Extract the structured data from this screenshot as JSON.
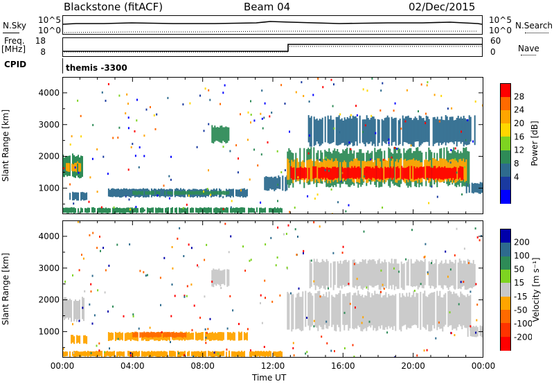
{
  "header": {
    "station": "Blackstone (fitACF)",
    "beam": "Beam 04",
    "date": "02/Dec/2015"
  },
  "noise_panel": {
    "left_label": "N.Sky",
    "right_label": "N.Search",
    "left_ticks": [
      "10^5",
      "10^0"
    ],
    "right_ticks": [
      "10^5",
      "10^0"
    ]
  },
  "freq_panel": {
    "left_label_1": "Freq.",
    "left_label_2": "[MHz]",
    "left_ticks": [
      "18",
      "8"
    ],
    "right_ticks": [
      "60",
      "0"
    ],
    "right_label": "Nave"
  },
  "cpid_panel": {
    "label": "CPID",
    "value": "themis -3300"
  },
  "chart_data": [
    {
      "type": "heatmap",
      "name": "power",
      "ylabel": "Slant Range [km]",
      "y_ticks": [
        "4000",
        "3000",
        "2000",
        "1000"
      ],
      "y_tick_values": [
        4000,
        3000,
        2000,
        1000
      ],
      "ylim": [
        180,
        4500
      ],
      "xlim_hours": [
        0,
        24
      ],
      "colorbar": {
        "label": "Power [dB]",
        "ticks": [
          "28",
          "24",
          "20",
          "16",
          "12",
          "8",
          "4"
        ],
        "colors": [
          "#ff0000",
          "#ff6a00",
          "#ffa500",
          "#ffd700",
          "#7ed321",
          "#2e8b57",
          "#2e6b8e",
          "#1a3aa0",
          "#0000ff"
        ]
      },
      "bands": [
        {
          "t0": 0.0,
          "t1": 1.2,
          "r0": 1300,
          "r1": 2100,
          "c": "#2e8b57"
        },
        {
          "t0": 0.2,
          "t1": 1.0,
          "r0": 1500,
          "r1": 1800,
          "c": "#ffa500"
        },
        {
          "t0": 0.4,
          "t1": 1.4,
          "r0": 600,
          "r1": 900,
          "c": "#2e6b8e"
        },
        {
          "t0": 2.6,
          "t1": 10.5,
          "r0": 700,
          "r1": 1000,
          "c": "#2e6b8e"
        },
        {
          "t0": 4.0,
          "t1": 9.5,
          "r0": 780,
          "r1": 920,
          "c": "#2e8b57"
        },
        {
          "t0": 8.5,
          "t1": 9.5,
          "r0": 2400,
          "r1": 3000,
          "c": "#2e8b57"
        },
        {
          "t0": 11.5,
          "t1": 12.8,
          "r0": 900,
          "r1": 1400,
          "c": "#2e6b8e"
        },
        {
          "t0": 12.8,
          "t1": 23.3,
          "r0": 1000,
          "r1": 2300,
          "c": "#2e8b57"
        },
        {
          "t0": 12.8,
          "t1": 23.0,
          "r0": 1150,
          "r1": 1950,
          "c": "#ffa500"
        },
        {
          "t0": 13.0,
          "t1": 22.8,
          "r0": 1250,
          "r1": 1700,
          "c": "#ff0000"
        },
        {
          "t0": 14.0,
          "t1": 23.5,
          "r0": 2300,
          "r1": 3300,
          "c": "#2e6b8e"
        },
        {
          "t0": 23.0,
          "t1": 24.0,
          "r0": 800,
          "r1": 1200,
          "c": "#2e6b8e"
        },
        {
          "t0": 0.0,
          "t1": 12.5,
          "r0": 200,
          "r1": 400,
          "c": "#2e8b57"
        }
      ]
    },
    {
      "type": "heatmap",
      "name": "velocity",
      "ylabel": "Slant Range [km]",
      "y_ticks": [
        "4000",
        "3000",
        "2000",
        "1000"
      ],
      "y_tick_values": [
        4000,
        3000,
        2000,
        1000
      ],
      "ylim": [
        180,
        4500
      ],
      "xlim_hours": [
        0,
        24
      ],
      "colorbar": {
        "label": "Velocity [m s⁻¹]",
        "ticks": [
          "200",
          "100",
          "50",
          "15",
          "-15",
          "-50",
          "-100",
          "-200"
        ],
        "colors": [
          "#0000aa",
          "#2e6b8e",
          "#2e8b57",
          "#7ed321",
          "#c8c8c8",
          "#ffa500",
          "#ff6a00",
          "#ff3300",
          "#ff0000"
        ]
      },
      "bands": [
        {
          "t0": 0.0,
          "t1": 1.2,
          "r0": 1300,
          "r1": 2100,
          "c": "#c8c8c8"
        },
        {
          "t0": 0.4,
          "t1": 1.4,
          "r0": 600,
          "r1": 900,
          "c": "#ffa500"
        },
        {
          "t0": 2.6,
          "t1": 10.5,
          "r0": 700,
          "r1": 1000,
          "c": "#ffa500"
        },
        {
          "t0": 4.0,
          "t1": 7.0,
          "r0": 800,
          "r1": 1000,
          "c": "#ff6a00"
        },
        {
          "t0": 8.5,
          "t1": 9.5,
          "r0": 2400,
          "r1": 3000,
          "c": "#c8c8c8"
        },
        {
          "t0": 12.8,
          "t1": 23.3,
          "r0": 1000,
          "r1": 2300,
          "c": "#c8c8c8"
        },
        {
          "t0": 14.0,
          "t1": 23.5,
          "r0": 2300,
          "r1": 3300,
          "c": "#c8c8c8"
        },
        {
          "t0": 23.0,
          "t1": 24.0,
          "r0": 800,
          "r1": 1200,
          "c": "#c8c8c8"
        },
        {
          "t0": 0.0,
          "t1": 12.5,
          "r0": 200,
          "r1": 400,
          "c": "#ffa500"
        }
      ]
    }
  ],
  "x_axis": {
    "label": "Time UT",
    "ticks": [
      "00:00",
      "04:00",
      "08:00",
      "12:00",
      "16:00",
      "20:00",
      "00:00"
    ]
  }
}
